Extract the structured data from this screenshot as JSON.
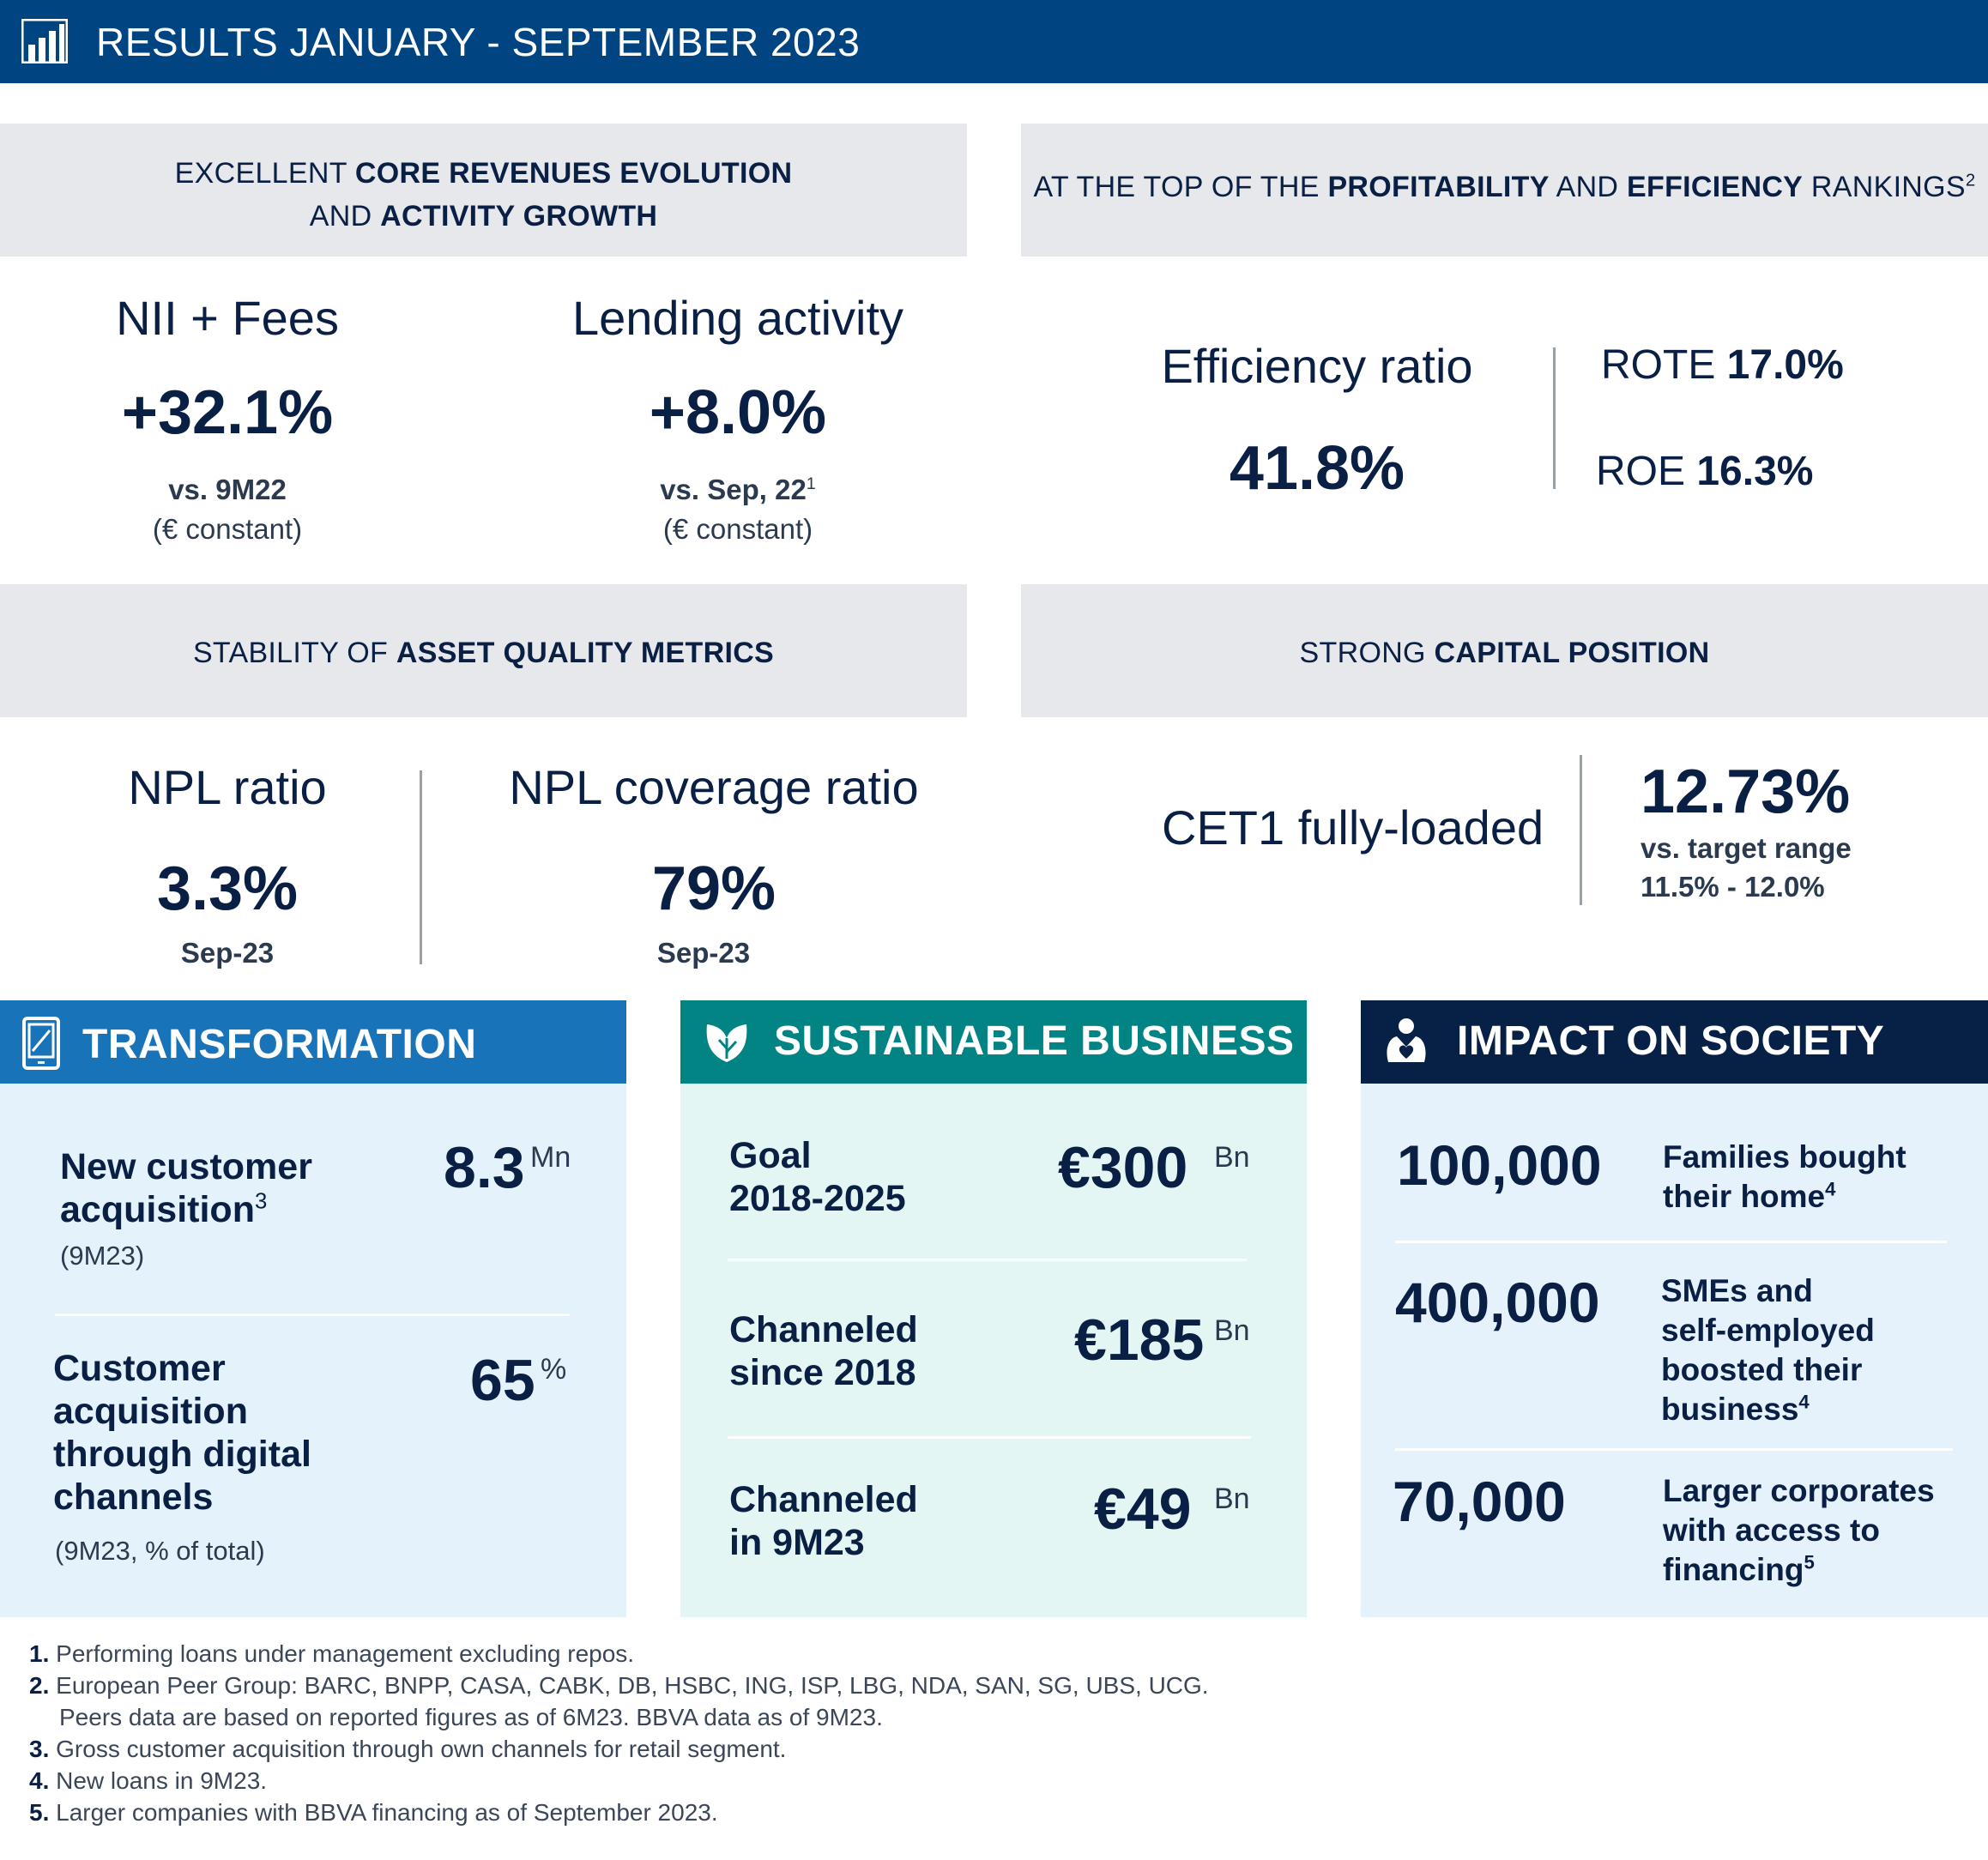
{
  "header": {
    "title": "RESULTS JANUARY - SEPTEMBER 2023"
  },
  "panels": {
    "core": {
      "t1a": "EXCELLENT ",
      "t1b": "CORE REVENUES EVOLUTION",
      "t2a": "AND ",
      "t2b": "ACTIVITY GROWTH"
    },
    "profit": {
      "ta": "AT THE TOP OF THE ",
      "tb": "PROFITABILITY",
      "tc": " AND ",
      "td": "EFFICIENCY",
      "te": " RANKINGS",
      "sup": "2"
    },
    "asset": {
      "ta": "STABILITY OF ",
      "tb": "ASSET QUALITY METRICS"
    },
    "capital": {
      "ta": "STRONG ",
      "tb": "CAPITAL POSITION"
    }
  },
  "metrics": {
    "nii": {
      "label": "NII + Fees",
      "value": "+32.1%",
      "sub": "vs. 9M22",
      "note": "(€ constant)"
    },
    "lending": {
      "label": "Lending activity",
      "value": "+8.0%",
      "sub": "vs. Sep, 22",
      "sup": "1",
      "note": "(€ constant)"
    },
    "efficiency": {
      "label": "Efficiency ratio",
      "value": "41.8%"
    },
    "rote": {
      "label": "ROTE ",
      "value": "17.0%"
    },
    "roe": {
      "label": "ROE ",
      "value": "16.3%"
    },
    "npl": {
      "label": "NPL ratio",
      "value": "3.3%",
      "sub": "Sep-23"
    },
    "coverage": {
      "label": "NPL coverage ratio",
      "value": "79%",
      "sub": "Sep-23"
    },
    "cet1": {
      "label": "CET1 fully-loaded",
      "value": "12.73%",
      "sub1": "vs. target range",
      "sub2": "11.5% - 12.0%"
    }
  },
  "transformation": {
    "title": "TRANSFORMATION",
    "item1": {
      "l1": "New customer",
      "l2": "acquisition",
      "sup": "3",
      "note": "(9M23)",
      "value": "8.3",
      "unit": "Mn"
    },
    "item2": {
      "l1": "Customer",
      "l2": "acquisition",
      "l3": "through digital",
      "l4": "channels",
      "note": "(9M23, % of total)",
      "value": "65",
      "unit": "%"
    }
  },
  "sustainable": {
    "title": "SUSTAINABLE BUSINESS",
    "items": [
      {
        "l1": "Goal",
        "l2": "2018-2025",
        "value": "€300",
        "unit": "Bn"
      },
      {
        "l1": "Channeled",
        "l2": "since 2018",
        "value": "€185",
        "unit": "Bn"
      },
      {
        "l1": "Channeled",
        "l2": "in 9M23",
        "value": "€49",
        "unit": "Bn"
      }
    ]
  },
  "society": {
    "title": "IMPACT ON SOCIETY",
    "items": [
      {
        "value": "100,000",
        "lines": [
          "Families bought",
          "their home"
        ],
        "sup": "4"
      },
      {
        "value": "400,000",
        "lines": [
          "SMEs and",
          "self-employed",
          "boosted their",
          "business"
        ],
        "sup": "4"
      },
      {
        "value": "70,000",
        "lines": [
          "Larger corporates",
          "with access to",
          "financing"
        ],
        "sup": "5"
      }
    ]
  },
  "footnotes": [
    {
      "n": "1.",
      "text": " Performing loans under management excluding repos."
    },
    {
      "n": "2.",
      "text": " European Peer Group: BARC, BNPP, CASA, CABK, DB, HSBC, ING, ISP, LBG, NDA, SAN, SG, UBS, UCG."
    },
    {
      "n": "",
      "text": "Peers data are based on reported figures as of 6M23. BBVA data as of 9M23."
    },
    {
      "n": "3.",
      "text": " Gross customer acquisition through own channels for retail segment."
    },
    {
      "n": "4.",
      "text": " New loans in 9M23."
    },
    {
      "n": "5.",
      "text": " Larger companies with BBVA financing as of September 2023."
    }
  ],
  "colors": {
    "header": "#004481",
    "transformation": "#1973b8",
    "sustainable": "#028484",
    "society": "#072146"
  }
}
